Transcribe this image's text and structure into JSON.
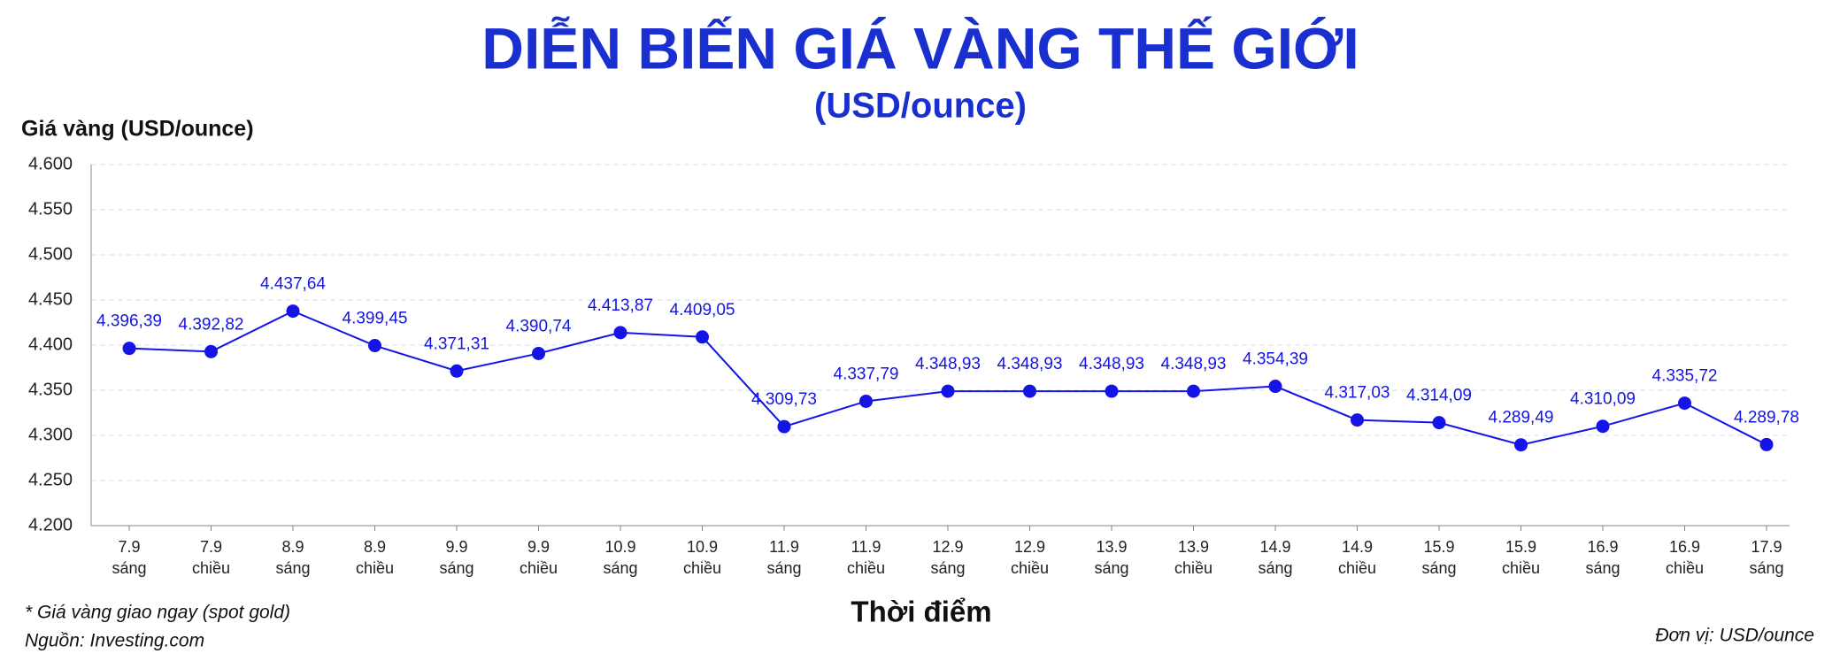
{
  "chart_data": {
    "type": "line",
    "title": "DIỄN BIẾN GIÁ VÀNG THẾ GIỚI",
    "subtitle": "(USD/ounce)",
    "y_label": "Giá vàng (USD/ounce)",
    "x_label": "Thời điểm",
    "note": "* Giá vàng giao ngay (spot gold)",
    "source": "Nguồn: Investing.com",
    "unit": "Đơn vị: USD/ounce",
    "color": "#1414e6",
    "grid": true,
    "categories": [
      [
        "7.9",
        "sáng"
      ],
      [
        "7.9",
        "chiều"
      ],
      [
        "8.9",
        "sáng"
      ],
      [
        "8.9",
        "chiều"
      ],
      [
        "9.9",
        "sáng"
      ],
      [
        "9.9",
        "chiều"
      ],
      [
        "10.9",
        "sáng"
      ],
      [
        "10.9",
        "chiều"
      ],
      [
        "11.9",
        "sáng"
      ],
      [
        "11.9",
        "chiều"
      ],
      [
        "12.9",
        "sáng"
      ],
      [
        "12.9",
        "chiều"
      ],
      [
        "13.9",
        "sáng"
      ],
      [
        "13.9",
        "chiều"
      ],
      [
        "14.9",
        "sáng"
      ],
      [
        "14.9",
        "chiều"
      ],
      [
        "15.9",
        "sáng"
      ],
      [
        "15.9",
        "chiều"
      ],
      [
        "16.9",
        "sáng"
      ],
      [
        "16.9",
        "chiều"
      ],
      [
        "17.9",
        "sáng"
      ]
    ],
    "values": [
      4396.39,
      4392.82,
      4437.64,
      4399.45,
      4371.31,
      4390.74,
      4413.87,
      4409.05,
      4309.73,
      4337.79,
      4348.93,
      4348.93,
      4348.93,
      4348.93,
      4354.39,
      4317.03,
      4314.09,
      4289.49,
      4310.09,
      4335.72,
      4289.78
    ],
    "value_labels": [
      "4.396,39",
      "4.392,82",
      "4.437,64",
      "4.399,45",
      "4.371,31",
      "4.390,74",
      "4.413,87",
      "4.409,05",
      "4.309,73",
      "4.337,79",
      "4.348,93",
      "4.348,93",
      "4.348,93",
      "4.348,93",
      "4.354,39",
      "4.317,03",
      "4.314,09",
      "4.289,49",
      "4.310,09",
      "4.335,72",
      "4.289,78"
    ],
    "ylim": [
      4200,
      4600
    ],
    "yticks": [
      {
        "value": 4200,
        "label": "4.200"
      },
      {
        "value": 4250,
        "label": "4.250"
      },
      {
        "value": 4300,
        "label": "4.300"
      },
      {
        "value": 4350,
        "label": "4.350"
      },
      {
        "value": 4400,
        "label": "4.400"
      },
      {
        "value": 4450,
        "label": "4.450"
      },
      {
        "value": 4500,
        "label": "4.500"
      },
      {
        "value": 4550,
        "label": "4.550"
      },
      {
        "value": 4600,
        "label": "4.600"
      }
    ]
  }
}
